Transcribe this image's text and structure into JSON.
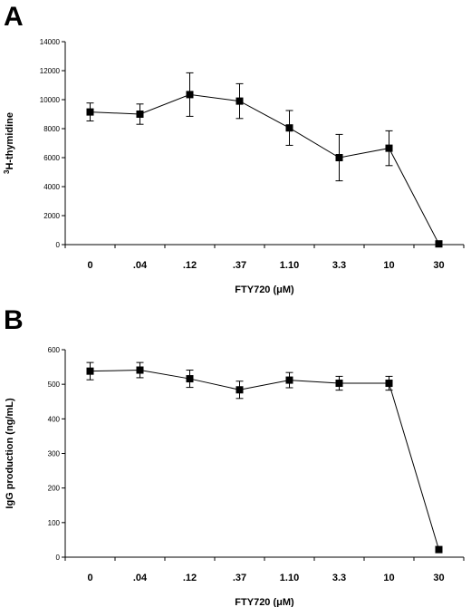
{
  "chart_data": [
    {
      "type": "line",
      "panel_label": "A",
      "categories": [
        "0",
        ".04",
        ".12",
        ".37",
        "1.10",
        "3.3",
        "10",
        "30"
      ],
      "series": [
        {
          "values": [
            9150,
            9000,
            10350,
            9900,
            8050,
            6000,
            6650,
            50
          ],
          "error": [
            620,
            700,
            1500,
            1200,
            1200,
            1600,
            1200,
            0
          ]
        }
      ],
      "xlabel": "FTY720 (μM)",
      "ylabel_sup": "3",
      "ylabel": "H-thymidine",
      "ylim": [
        0,
        14000
      ],
      "yticks": [
        0,
        2000,
        4000,
        6000,
        8000,
        10000,
        12000,
        14000
      ],
      "marker": "square",
      "color": "#000000",
      "grid": false
    },
    {
      "type": "line",
      "panel_label": "B",
      "categories": [
        "0",
        ".04",
        ".12",
        ".37",
        "1.10",
        "3.3",
        "10",
        "30"
      ],
      "series": [
        {
          "values": [
            538,
            541,
            516,
            484,
            512,
            503,
            503,
            22
          ],
          "error": [
            25,
            22,
            25,
            25,
            22,
            20,
            20,
            0
          ]
        }
      ],
      "xlabel": "FTY720 (μM)",
      "ylabel": "IgG production (ng/mL)",
      "ylim": [
        0,
        600
      ],
      "yticks": [
        0,
        100,
        200,
        300,
        400,
        500,
        600
      ],
      "marker": "square",
      "color": "#000000",
      "grid": false
    }
  ]
}
